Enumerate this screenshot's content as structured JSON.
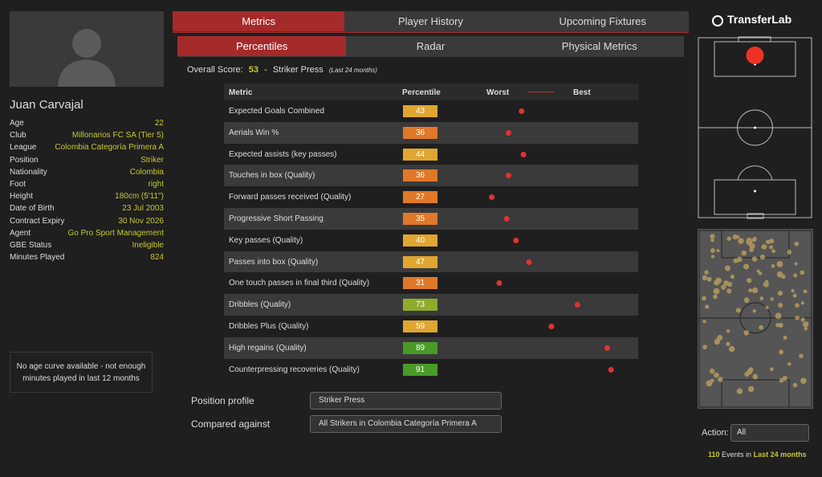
{
  "player": {
    "name": "Juan Carvajal",
    "fields": [
      {
        "label": "Age",
        "value": "22"
      },
      {
        "label": "Club",
        "value": "Millonarios FC SA (Tier 5)"
      },
      {
        "label": "League",
        "value": "Colombia Categoría Primera A"
      },
      {
        "label": "Position",
        "value": "Striker"
      },
      {
        "label": "Nationality",
        "value": "Colombia"
      },
      {
        "label": "Foot",
        "value": "right"
      },
      {
        "label": "Height",
        "value": "180cm (5'11\")"
      },
      {
        "label": "Date of Birth",
        "value": "23 Jul 2003"
      },
      {
        "label": "Contract Expiry",
        "value": "30 Nov 2026"
      },
      {
        "label": "Agent",
        "value": "Go Pro Sport Management"
      },
      {
        "label": "GBE Status",
        "value": "Ineligible"
      },
      {
        "label": "Minutes Played",
        "value": "824"
      }
    ]
  },
  "age_curve_note": "No age curve available - not enough minutes played in last 12 months",
  "tabs": [
    "Metrics",
    "Player History",
    "Upcoming Fixtures"
  ],
  "subtabs": [
    "Percentiles",
    "Radar",
    "Physical Metrics"
  ],
  "score": {
    "label": "Overall Score:",
    "value": 53,
    "separator": "-",
    "profile": "Striker Press",
    "period": "(Last 24 months)"
  },
  "table": {
    "headers": [
      "Metric",
      "Percentile",
      "Worst",
      "Best"
    ],
    "rows": [
      {
        "metric": "Expected Goals Combined",
        "percentile": 43
      },
      {
        "metric": "Aerials Win %",
        "percentile": 36
      },
      {
        "metric": "Expected assists (key passes)",
        "percentile": 44
      },
      {
        "metric": "Touches in box (Quality)",
        "percentile": 36
      },
      {
        "metric": "Forward passes received (Quality)",
        "percentile": 27
      },
      {
        "metric": "Progressive Short Passing",
        "percentile": 35
      },
      {
        "metric": "Key passes (Quality)",
        "percentile": 40
      },
      {
        "metric": "Passes into box (Quality)",
        "percentile": 47
      },
      {
        "metric": "One touch passes in final third (Quality)",
        "percentile": 31
      },
      {
        "metric": "Dribbles (Quality)",
        "percentile": 73
      },
      {
        "metric": "Dribbles Plus (Quality)",
        "percentile": 59
      },
      {
        "metric": "High regains (Quality)",
        "percentile": 89
      },
      {
        "metric": "Counterpressing recoveries (Quality)",
        "percentile": 91
      }
    ]
  },
  "position_profile": {
    "label": "Position profile",
    "value": "Striker Press"
  },
  "compared_against": {
    "label": "Compared against",
    "value": "All Strikers in Colombia Categoría Primera A"
  },
  "brand": "TransferLab",
  "action": {
    "label": "Action:",
    "value": "All"
  },
  "events": {
    "count": 110,
    "text": "Events in",
    "period": "Last 24 months"
  }
}
